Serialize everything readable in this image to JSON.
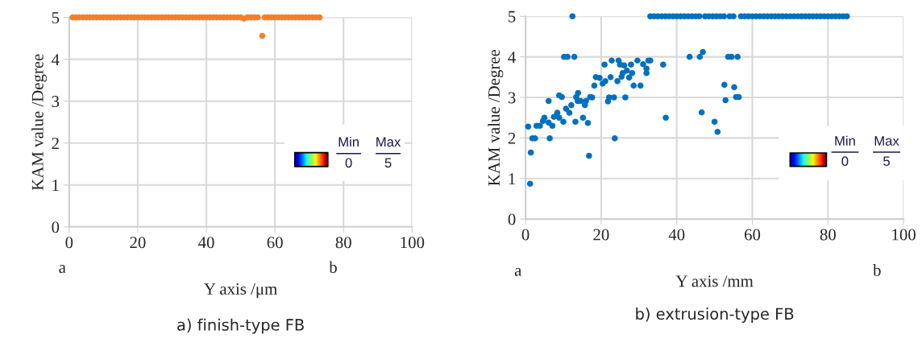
{
  "chart_data": [
    {
      "type": "scatter",
      "title": "a) finish-type FB",
      "xlabel": "Y axis /μm",
      "ylabel": "KAM value /Degree",
      "x": [
        1,
        2,
        3,
        4,
        5,
        6,
        7,
        8,
        9,
        10,
        11,
        12,
        13,
        14,
        15,
        16,
        17,
        18,
        19,
        20,
        21,
        22,
        23,
        24,
        25,
        26,
        27,
        28,
        29,
        30,
        31,
        32,
        33,
        34,
        35,
        36,
        37,
        38,
        39,
        40,
        41,
        42,
        43,
        44,
        45,
        46,
        47,
        48,
        49,
        50,
        51,
        52,
        53,
        54,
        55,
        56.3,
        57,
        58,
        59,
        60,
        61,
        62,
        63,
        64,
        65,
        66,
        67,
        68,
        69,
        70,
        71,
        72,
        73
      ],
      "series": [
        {
          "color": "#f47f2a",
          "values": [
            5,
            5,
            5,
            5,
            5,
            5,
            5,
            5,
            5,
            5,
            5,
            5,
            5,
            5,
            5,
            5,
            5,
            5,
            5,
            5,
            5,
            5,
            5,
            5,
            5,
            5,
            5,
            5,
            5,
            5,
            5,
            5,
            5,
            5,
            5,
            5,
            5,
            5,
            5,
            5,
            5,
            5,
            5,
            5,
            5,
            5,
            5,
            5,
            5,
            5,
            4.97,
            5,
            5,
            5,
            5,
            4.56,
            5,
            5,
            5,
            5,
            5,
            5,
            5,
            5,
            5,
            5,
            5,
            5,
            5,
            5,
            5,
            5,
            5
          ]
        }
      ],
      "xlim": [
        0,
        100
      ],
      "xticks": [
        0,
        20,
        40,
        60,
        80,
        100
      ],
      "ylim": [
        0,
        5
      ],
      "yticks": [
        0,
        1,
        2,
        3,
        4,
        5
      ],
      "grid": true,
      "marker": "circle",
      "annotations": [
        "a",
        "b",
        "Min",
        "Max",
        "0",
        "5"
      ]
    },
    {
      "type": "scatter",
      "title": "b) extrusion-type FB",
      "xlabel": "Y axis /mm",
      "ylabel": "KAM value /Degree",
      "series": [
        {
          "color": "#0070c0",
          "x": [
            12.4,
            10.2,
            11.1,
            12.9,
            20.9,
            22.8,
            24.6,
            25,
            26.1,
            27.9,
            29.6,
            31.1,
            32.5,
            33,
            32,
            32,
            28.2,
            26.8,
            25.7,
            25.4,
            27.4,
            24.3,
            22.5,
            21.1,
            19.6,
            18.6,
            20.4,
            18.2,
            28.6,
            30.4,
            22.1,
            23.4,
            21.8,
            26.4,
            17.6,
            17.1,
            36.4,
            37.1,
            23.6,
            16.8,
            6.1,
            8.9,
            9.6,
            13.9,
            13.4,
            13.8,
            14.6,
            16,
            15.7,
            12.1,
            10.7,
            11.6,
            8.4,
            7.5,
            8.9,
            10,
            15.2,
            13.2,
            16.5,
            5,
            4.6,
            7.1,
            6.1,
            2.9,
            3.8,
            0.7,
            1.8,
            2.5,
            6.4,
            1.4,
            1.2,
            43.4,
            46.1,
            46.9,
            53.6,
            54.5,
            56.1,
            52.6,
            55.2,
            55.7,
            56.4,
            52.9,
            46.6,
            50,
            50.8
          ],
          "values": [
            5,
            4,
            4,
            4,
            3.81,
            3.91,
            3.91,
            3.81,
            3.79,
            3.81,
            3.91,
            3.82,
            3.91,
            3.91,
            3.71,
            3.6,
            3.6,
            3.66,
            3.6,
            3.51,
            3.49,
            3.4,
            3.5,
            3.4,
            3.48,
            3.5,
            3.34,
            3.29,
            3.29,
            3.29,
            3,
            3,
            2.9,
            3,
            3,
            3.01,
            3.81,
            2.5,
            1.99,
            1.56,
            2.91,
            3.05,
            3.01,
            3.11,
            3.01,
            2.91,
            2.91,
            2.91,
            2.81,
            2.81,
            2.72,
            2.62,
            2.62,
            2.52,
            2.5,
            2.4,
            2.5,
            2.4,
            2.37,
            2.5,
            2.42,
            2.3,
            2.38,
            2.3,
            2.3,
            2.28,
            1.99,
            1.99,
            1.99,
            1.64,
            0.87,
            4,
            4,
            4.12,
            4,
            4,
            4,
            3.31,
            3.25,
            3.01,
            3.01,
            2.93,
            2.63,
            2.4,
            2.15
          ]
        },
        {
          "color": "#0070c0",
          "x": [
            33,
            34,
            35,
            36,
            37,
            38,
            39,
            40,
            41,
            42,
            43,
            44,
            45,
            46,
            47.5,
            48.5,
            49.5,
            50.5,
            51.5,
            52.5,
            54,
            55,
            57,
            58,
            59,
            60,
            61,
            62,
            63,
            64,
            65,
            66,
            67,
            68,
            69,
            70,
            71,
            72,
            73,
            74,
            75,
            76,
            77,
            78,
            79,
            80,
            81,
            82,
            83,
            84,
            85
          ],
          "values": [
            5,
            5,
            5,
            5,
            5,
            5,
            5,
            5,
            5,
            5,
            5,
            5,
            5,
            5,
            5,
            5,
            5,
            5,
            5,
            5,
            5,
            5,
            5,
            5,
            5,
            5,
            5,
            5,
            5,
            5,
            5,
            5,
            5,
            5,
            5,
            5,
            5,
            5,
            5,
            5,
            5,
            5,
            5,
            5,
            5,
            5,
            5,
            5,
            5,
            5,
            5
          ]
        }
      ],
      "xlim": [
        0,
        100
      ],
      "xticks": [
        0,
        20,
        40,
        60,
        80,
        100
      ],
      "ylim": [
        0,
        5
      ],
      "yticks": [
        0,
        1,
        2,
        3,
        4,
        5
      ],
      "grid": true,
      "marker": "circle",
      "annotations": [
        "a",
        "b",
        "Min",
        "Max",
        "0",
        "5"
      ]
    }
  ]
}
